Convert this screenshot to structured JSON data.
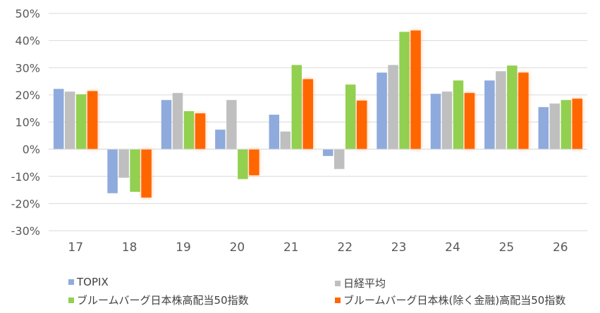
{
  "chart_data": {
    "type": "bar",
    "title": "",
    "xlabel": "",
    "ylabel": "",
    "categories": [
      "17",
      "18",
      "19",
      "20",
      "21",
      "22",
      "23",
      "24",
      "25",
      "26"
    ],
    "ylim": [
      -30,
      50
    ],
    "yticks": [
      50,
      40,
      30,
      20,
      10,
      0,
      -10,
      -20,
      -30
    ],
    "ytick_labels": [
      "50%",
      "40%",
      "30%",
      "20%",
      "10%",
      "0%",
      "-10%",
      "-20%",
      "-30%"
    ],
    "grid": true,
    "legend_position": "bottom",
    "series": [
      {
        "name": "TOPIX",
        "color": "#8FAADC",
        "values": [
          22.2,
          -16.2,
          18.1,
          7.2,
          12.7,
          -2.5,
          28.2,
          20.4,
          25.3,
          15.5
        ]
      },
      {
        "name": "日経平均",
        "color": "#BFBFBF",
        "values": [
          21.2,
          -10.5,
          20.7,
          18.1,
          6.5,
          -7.3,
          31.0,
          21.2,
          28.7,
          16.8
        ]
      },
      {
        "name": "ブルームバーグ日本株高配当50指数",
        "color": "#92D050",
        "values": [
          20.2,
          -15.7,
          14.0,
          -11.0,
          31.0,
          23.8,
          43.2,
          25.3,
          30.8,
          18.1
        ]
      },
      {
        "name": "ブルームバーグ日本株(除く金融)高配当50指数",
        "color": "#FF6600",
        "values": [
          21.4,
          -17.8,
          13.2,
          -9.6,
          25.8,
          17.9,
          43.7,
          20.7,
          28.2,
          18.6
        ]
      }
    ]
  }
}
